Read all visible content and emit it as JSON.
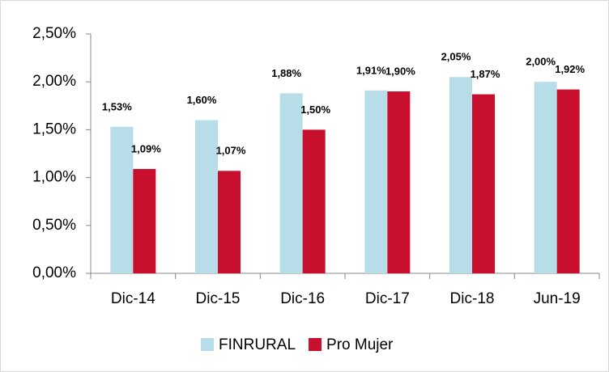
{
  "chart_data": {
    "type": "bar",
    "categories": [
      "Dic-14",
      "Dic-15",
      "Dic-16",
      "Dic-17",
      "Dic-18",
      "Jun-19"
    ],
    "series": [
      {
        "name": "FINRURAL",
        "color": "#b7dde8",
        "values": [
          1.53,
          1.6,
          1.88,
          1.91,
          2.05,
          2.0
        ],
        "value_labels": [
          "1,53%",
          "1,60%",
          "1,88%",
          "1,91%",
          "2,05%",
          "2,00%"
        ]
      },
      {
        "name": "Pro Mujer",
        "color": "#c8102e",
        "values": [
          1.09,
          1.07,
          1.5,
          1.9,
          1.87,
          1.92
        ],
        "value_labels": [
          "1,09%",
          "1,07%",
          "1,50%",
          "1,90%",
          "1,87%",
          "1,92%"
        ]
      }
    ],
    "ylim": [
      0,
      2.5
    ],
    "yticks": [
      {
        "value": 0,
        "label": "0,00%"
      },
      {
        "value": 0.5,
        "label": "0,50%"
      },
      {
        "value": 1,
        "label": "1,00%"
      },
      {
        "value": 1.5,
        "label": "1,50%"
      },
      {
        "value": 2,
        "label": "2,00%"
      },
      {
        "value": 2.5,
        "label": "2,50%"
      }
    ],
    "grid": false,
    "legend": "bottom"
  }
}
